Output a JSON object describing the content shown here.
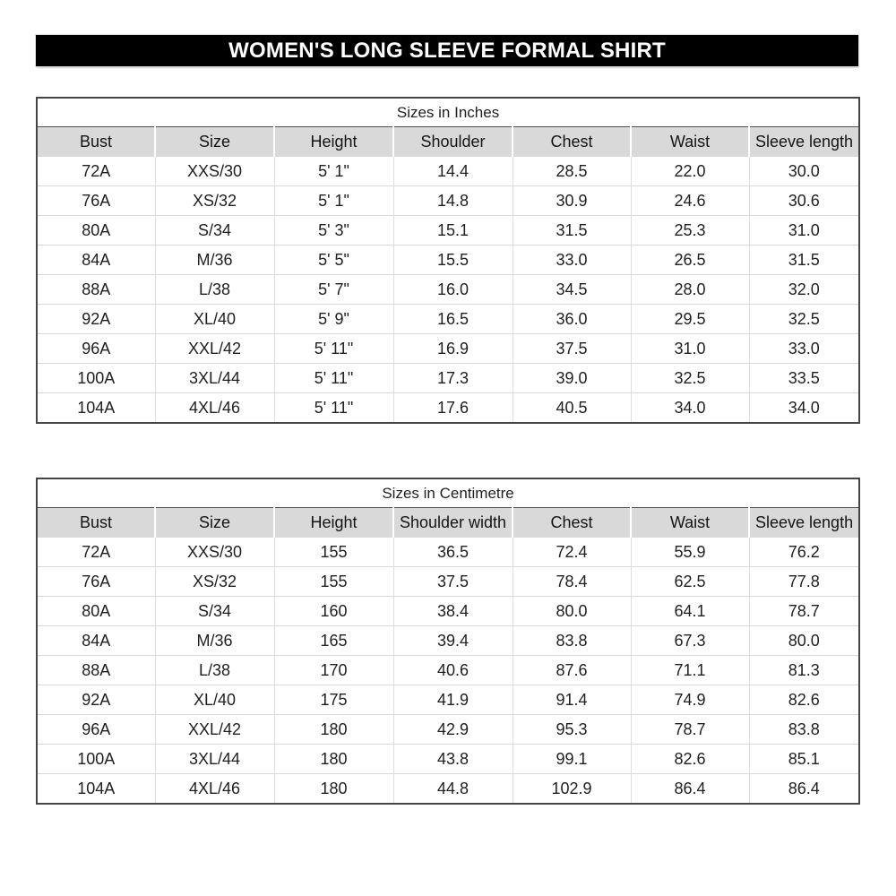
{
  "banner": {
    "title": "WOMEN'S LONG SLEEVE FORMAL SHIRT"
  },
  "tables": [
    {
      "title": "Sizes in Inches",
      "columns": [
        "Bust",
        "Size",
        "Height",
        "Shoulder",
        "Chest",
        "Waist",
        "Sleeve length"
      ],
      "rows": [
        [
          "72A",
          "XXS/30",
          "5' 1\"",
          "14.4",
          "28.5",
          "22.0",
          "30.0"
        ],
        [
          "76A",
          "XS/32",
          "5' 1\"",
          "14.8",
          "30.9",
          "24.6",
          "30.6"
        ],
        [
          "80A",
          "S/34",
          "5' 3\"",
          "15.1",
          "31.5",
          "25.3",
          "31.0"
        ],
        [
          "84A",
          "M/36",
          "5' 5\"",
          "15.5",
          "33.0",
          "26.5",
          "31.5"
        ],
        [
          "88A",
          "L/38",
          "5' 7\"",
          "16.0",
          "34.5",
          "28.0",
          "32.0"
        ],
        [
          "92A",
          "XL/40",
          "5' 9\"",
          "16.5",
          "36.0",
          "29.5",
          "32.5"
        ],
        [
          "96A",
          "XXL/42",
          "5' 11\"",
          "16.9",
          "37.5",
          "31.0",
          "33.0"
        ],
        [
          "100A",
          "3XL/44",
          "5' 11\"",
          "17.3",
          "39.0",
          "32.5",
          "33.5"
        ],
        [
          "104A",
          "4XL/46",
          "5' 11\"",
          "17.6",
          "40.5",
          "34.0",
          "34.0"
        ]
      ]
    },
    {
      "title": "Sizes in Centimetre",
      "columns": [
        "Bust",
        "Size",
        "Height",
        "Shoulder width",
        "Chest",
        "Waist",
        "Sleeve length"
      ],
      "rows": [
        [
          "72A",
          "XXS/30",
          "155",
          "36.5",
          "72.4",
          "55.9",
          "76.2"
        ],
        [
          "76A",
          "XS/32",
          "155",
          "37.5",
          "78.4",
          "62.5",
          "77.8"
        ],
        [
          "80A",
          "S/34",
          "160",
          "38.4",
          "80.0",
          "64.1",
          "78.7"
        ],
        [
          "84A",
          "M/36",
          "165",
          "39.4",
          "83.8",
          "67.3",
          "80.0"
        ],
        [
          "88A",
          "L/38",
          "170",
          "40.6",
          "87.6",
          "71.1",
          "81.3"
        ],
        [
          "92A",
          "XL/40",
          "175",
          "41.9",
          "91.4",
          "74.9",
          "82.6"
        ],
        [
          "96A",
          "XXL/42",
          "180",
          "42.9",
          "95.3",
          "78.7",
          "83.8"
        ],
        [
          "100A",
          "3XL/44",
          "180",
          "43.8",
          "99.1",
          "82.6",
          "85.1"
        ],
        [
          "104A",
          "4XL/46",
          "180",
          "44.8",
          "102.9",
          "86.4",
          "86.4"
        ]
      ]
    }
  ],
  "colors": {
    "banner_bg": "#000000",
    "banner_text": "#ffffff",
    "header_bg": "#d9d9d9",
    "table_border": "#454545",
    "gridline": "#d9d9d9",
    "text": "#1f1f1f"
  }
}
